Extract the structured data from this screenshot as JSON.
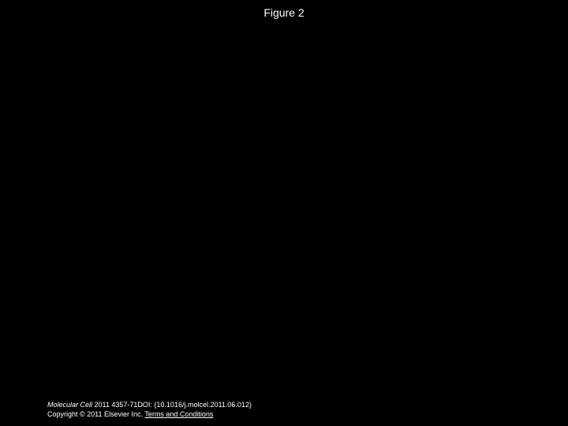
{
  "figure": {
    "title": "Figure 2"
  },
  "footer": {
    "journal": "Molecular Cell",
    "citation": " 2011 4357-71DOI: (10.1016/j.molcel.2011.06.012)",
    "copyright": "Copyright © 2011 Elsevier Inc. ",
    "terms_link": "Terms and Conditions"
  },
  "colors": {
    "background": "#000000",
    "text": "#ffffff"
  }
}
